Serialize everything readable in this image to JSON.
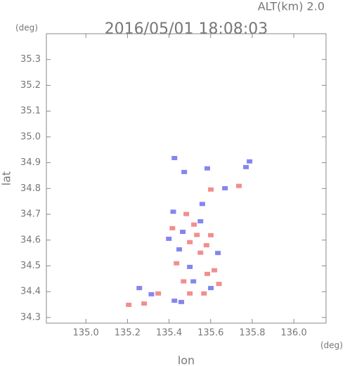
{
  "chart_data": {
    "type": "scatter",
    "title": "2016/05/01 18:08:03",
    "subtitle": "ALT(km) 2.0",
    "x_label": "lon",
    "y_label": "lat",
    "x_unit": "(deg)",
    "y_unit": "(deg)",
    "xlim": [
      134.81,
      136.155
    ],
    "ylim": [
      34.278,
      35.4
    ],
    "xticks": [
      {
        "value": 135,
        "label": "135.0"
      },
      135.2,
      135.4,
      135.6,
      135.8,
      {
        "value": 136,
        "label": "136.0"
      }
    ],
    "yticks": [
      34.3,
      34.4,
      34.5,
      34.6,
      34.7,
      34.8,
      34.9,
      {
        "value": 35,
        "label": "35.0"
      },
      35.1,
      35.2,
      35.3
    ],
    "series": [
      {
        "color": "#f07a7a",
        "x": [
          135.206,
          135.28,
          135.5,
          135.568,
          135.584,
          135.618,
          135.551,
          135.5,
          135.601,
          135.416,
          135.483,
          135.601,
          135.736,
          135.348,
          135.534,
          135.436,
          135.64,
          135.52,
          135.58,
          135.47
        ],
        "values": [
          34.349,
          34.354,
          34.393,
          34.393,
          34.469,
          34.483,
          34.551,
          34.592,
          34.619,
          34.646,
          34.701,
          34.796,
          34.81,
          34.393,
          34.62,
          34.51,
          34.43,
          34.66,
          34.58,
          34.44
        ]
      },
      {
        "color": "#7070ee",
        "x": [
          135.257,
          135.426,
          135.459,
          135.601,
          135.5,
          135.466,
          135.551,
          135.399,
          135.449,
          135.669,
          135.473,
          135.584,
          135.77,
          135.787,
          135.426,
          135.315,
          135.517,
          135.635,
          135.42,
          135.56
        ],
        "values": [
          34.414,
          34.365,
          34.36,
          34.414,
          34.496,
          34.632,
          34.673,
          34.605,
          34.564,
          34.801,
          34.864,
          34.878,
          34.883,
          34.905,
          34.918,
          34.39,
          34.44,
          34.55,
          34.71,
          34.74
        ]
      }
    ]
  }
}
